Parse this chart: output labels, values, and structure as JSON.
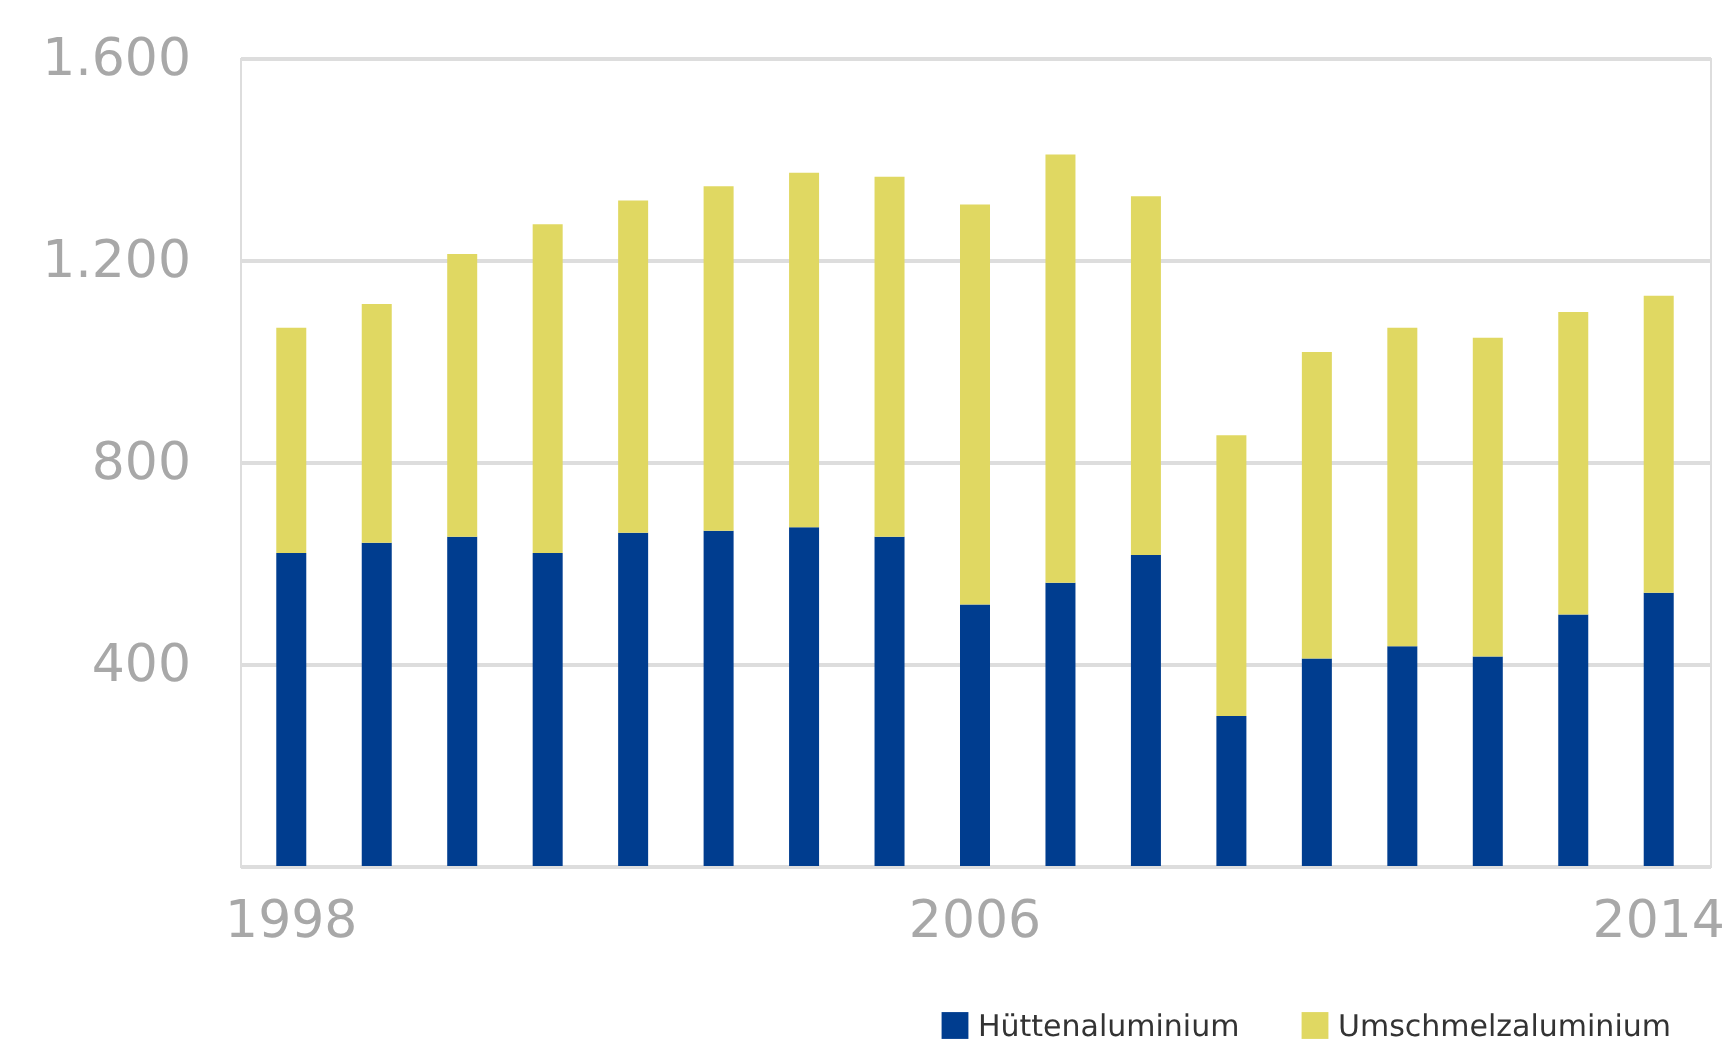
{
  "chart_data": {
    "type": "bar",
    "stacked": true,
    "categories": [
      "1998",
      null,
      null,
      null,
      null,
      null,
      null,
      null,
      "2006",
      null,
      null,
      null,
      null,
      null,
      null,
      null,
      "2014"
    ],
    "series": [
      {
        "name": "Hüttenaluminium",
        "color": "#003d8f",
        "values": [
          620,
          640,
          652,
          620,
          660,
          664,
          671,
          652,
          518,
          561,
          616,
          297,
          411,
          435,
          415,
          498,
          541
        ]
      },
      {
        "name": "Umschmelzaluminium",
        "color": "#e0d862",
        "values": [
          446,
          473,
          560,
          651,
          658,
          682,
          702,
          713,
          792,
          848,
          710,
          556,
          607,
          631,
          631,
          599,
          588
        ]
      }
    ],
    "ylim": [
      0,
      1600
    ],
    "yticks": [
      {
        "value": 0,
        "label": null
      },
      400,
      800,
      {
        "value": 1200,
        "label": "1.200"
      },
      {
        "value": 1600,
        "label": "1.600"
      }
    ],
    "grid": "y",
    "legend": "bottom right"
  }
}
